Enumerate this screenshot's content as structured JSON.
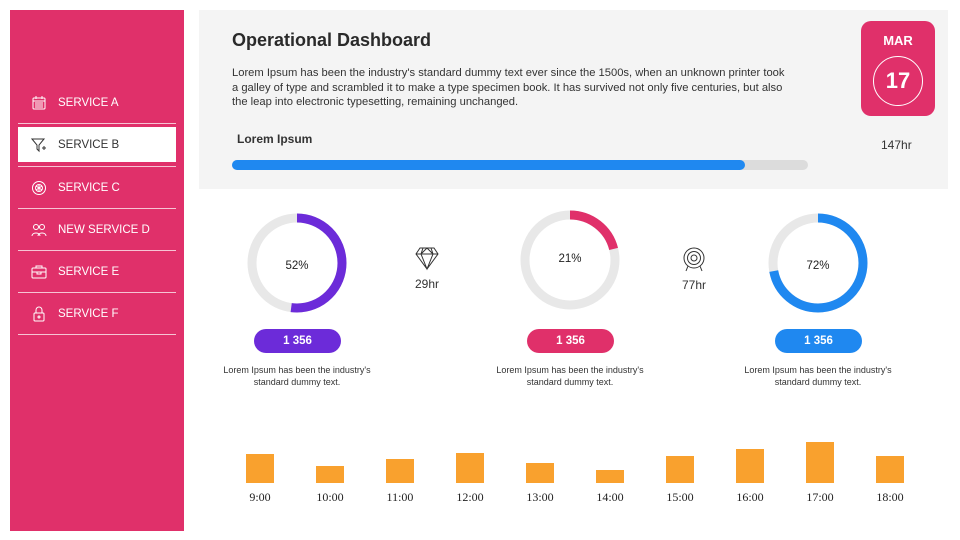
{
  "sidebar": {
    "items": [
      {
        "label": "SERVICE A",
        "icon": "calendar-icon",
        "active": false
      },
      {
        "label": "SERVICE B",
        "icon": "funnel-icon",
        "active": true
      },
      {
        "label": "SERVICE C",
        "icon": "gear-icon",
        "active": false
      },
      {
        "label": "NEW SERVICE D",
        "icon": "users-icon",
        "active": false
      },
      {
        "label": "SERVICE E",
        "icon": "briefcase-icon",
        "active": false
      },
      {
        "label": "SERVICE F",
        "icon": "lock-icon",
        "active": false
      }
    ]
  },
  "header": {
    "title": "Operational Dashboard",
    "description": "Lorem Ipsum has been the industry's standard dummy text ever since the 1500s, when an unknown printer took a galley of type and scrambled it to make a type specimen book. It has survived not only five centuries, but also the leap into electronic typesetting,  remaining unchanged.",
    "progress_label": "Lorem Ipsum",
    "progress_percent": 89,
    "progress_color": "#1f88f0",
    "date_month": "MAR",
    "date_day": "17",
    "hours": "147hr"
  },
  "kpis": [
    {
      "percent_label": "52%",
      "value": 52,
      "color": "#6c2bd9",
      "badge": "1 356",
      "caption": "Lorem Ipsum has been the industry's standard dummy text."
    },
    {
      "percent_label": "21%",
      "value": 21,
      "color": "#e0306a",
      "badge": "1 356",
      "caption": "Lorem Ipsum has been the industry's standard dummy text."
    },
    {
      "percent_label": "72%",
      "value": 72,
      "color": "#1f88f0",
      "badge": "1 356",
      "caption": "Lorem Ipsum has been the industry's standard dummy text."
    }
  ],
  "stats": [
    {
      "icon": "diamond-icon",
      "label": "29hr"
    },
    {
      "icon": "target-icon",
      "label": "77hr"
    }
  ],
  "chart_data": {
    "type": "bar",
    "color": "#f9a12e",
    "categories": [
      "9:00",
      "10:00",
      "11:00",
      "12:00",
      "13:00",
      "14:00",
      "15:00",
      "16:00",
      "17:00",
      "18:00"
    ],
    "values": [
      29,
      17,
      24,
      30,
      20,
      13,
      27,
      34,
      41,
      27
    ]
  }
}
